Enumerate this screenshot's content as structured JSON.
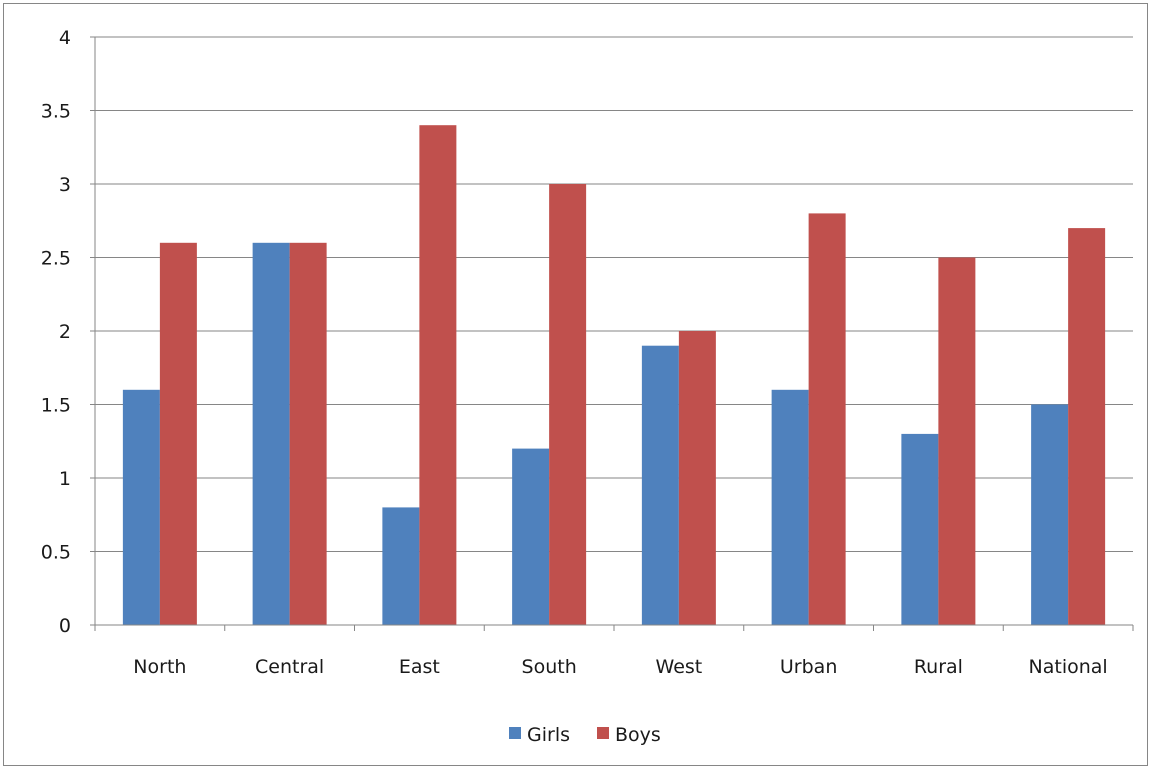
{
  "chart_data": {
    "type": "bar",
    "title": "",
    "xlabel": "",
    "ylabel": "",
    "categories": [
      "North",
      "Central",
      "East",
      "South",
      "West",
      "Urban",
      "Rural",
      "National"
    ],
    "series": [
      {
        "name": "Girls",
        "color": "#4F81BD",
        "values": [
          1.6,
          2.6,
          0.8,
          1.2,
          1.9,
          1.6,
          1.3,
          1.5
        ]
      },
      {
        "name": "Boys",
        "color": "#C0504D",
        "values": [
          2.6,
          2.6,
          3.4,
          3.0,
          2.0,
          2.8,
          2.5,
          2.7
        ]
      }
    ],
    "ylim": [
      0,
      4
    ],
    "yticks": [
      "0",
      "0.5",
      "1",
      "1.5",
      "2",
      "2.5",
      "3",
      "3.5",
      "4"
    ],
    "grid": true,
    "legend_position": "bottom"
  }
}
